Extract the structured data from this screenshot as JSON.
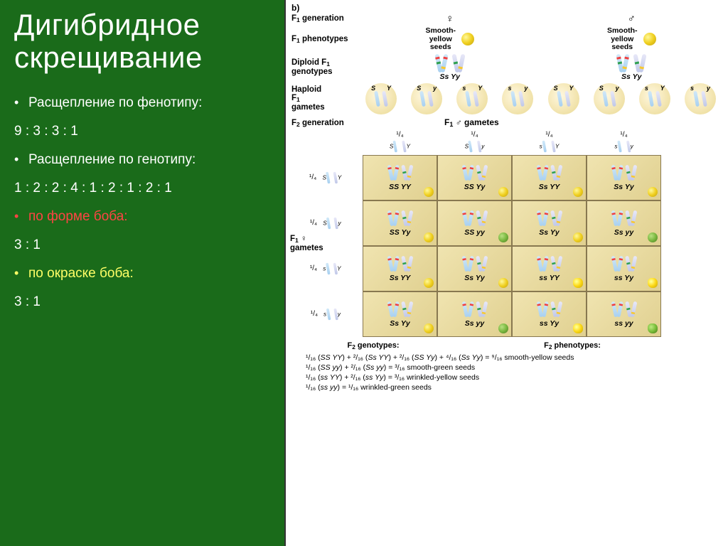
{
  "title": "Дигибридное скрещивание",
  "left_bullets": [
    {
      "text": "Расщепление по фенотипу:",
      "cls": "bullet"
    },
    {
      "text": "9 : 3 : 3 : 1",
      "cls": "no-bullet"
    },
    {
      "text": "Расщепление по генотипу:",
      "cls": "bullet"
    },
    {
      "text": "1 : 2 : 2 : 4 : 1 : 2 : 1 : 2 : 1",
      "cls": "no-bullet"
    },
    {
      "text": "по форме боба:",
      "cls": "bullet red"
    },
    {
      "text": "3 : 1",
      "cls": "no-bullet"
    },
    {
      "text": "по окраске боба:",
      "cls": "bullet yellow"
    },
    {
      "text": "3 : 1",
      "cls": "no-bullet"
    }
  ],
  "section_b": "b)",
  "labels": {
    "f1gen": "F₁ generation",
    "f1pheno": "F₁ phenotypes",
    "diploid": "Diploid F₁ genotypes",
    "haploid": "Haploid F₁ gametes",
    "f2gen": "F₂ generation",
    "male_gametes": "F₁ ♂ gametes",
    "female_gametes": "F₁ ♀\ngametes",
    "smooth_yellow": "Smooth-\nyellow\nseeds",
    "ssyy": "Ss Yy",
    "f2geno_header": "F₂ genotypes:",
    "f2pheno_header": "F₂ phenotypes:"
  },
  "gamete_headers": [
    {
      "frac": "¹/₄",
      "allele1": "S",
      "allele2": "Y"
    },
    {
      "frac": "¹/₄",
      "allele1": "S",
      "allele2": "y"
    },
    {
      "frac": "¹/₄",
      "allele1": "s",
      "allele2": "Y"
    },
    {
      "frac": "¹/₄",
      "allele1": "s",
      "allele2": "y"
    }
  ],
  "punnett_rows": [
    {
      "hdr": {
        "frac": "¹/₄",
        "allele1": "S",
        "allele2": "Y"
      },
      "cells": [
        {
          "geno": "SS YY",
          "seed": "seed-yellow"
        },
        {
          "geno": "SS Yy",
          "seed": "seed-yellow"
        },
        {
          "geno": "Ss YY",
          "seed": "seed-yellow"
        },
        {
          "geno": "Ss Yy",
          "seed": "seed-yellow"
        }
      ]
    },
    {
      "hdr": {
        "frac": "¹/₄",
        "allele1": "S",
        "allele2": "y"
      },
      "cells": [
        {
          "geno": "SS Yy",
          "seed": "seed-yellow"
        },
        {
          "geno": "SS yy",
          "seed": "seed-green"
        },
        {
          "geno": "Ss Yy",
          "seed": "seed-yellow"
        },
        {
          "geno": "Ss yy",
          "seed": "seed-green"
        }
      ]
    },
    {
      "hdr": {
        "frac": "¹/₄",
        "allele1": "s",
        "allele2": "Y"
      },
      "cells": [
        {
          "geno": "Ss YY",
          "seed": "seed-yellow"
        },
        {
          "geno": "Ss Yy",
          "seed": "seed-yellow"
        },
        {
          "geno": "ss YY",
          "seed": "seed-yellow-wrinkled"
        },
        {
          "geno": "ss Yy",
          "seed": "seed-yellow-wrinkled"
        }
      ]
    },
    {
      "hdr": {
        "frac": "¹/₄",
        "allele1": "s",
        "allele2": "y"
      },
      "cells": [
        {
          "geno": "Ss Yy",
          "seed": "seed-yellow"
        },
        {
          "geno": "Ss yy",
          "seed": "seed-green"
        },
        {
          "geno": "ss Yy",
          "seed": "seed-yellow-wrinkled"
        },
        {
          "geno": "ss yy",
          "seed": "seed-green-wrinkled"
        }
      ]
    }
  ],
  "gamete_circles": [
    {
      "l": "S",
      "r": "Y"
    },
    {
      "l": "S",
      "r": "y"
    },
    {
      "l": "s",
      "r": "Y"
    },
    {
      "l": "s",
      "r": "y"
    },
    {
      "l": "S",
      "r": "Y"
    },
    {
      "l": "S",
      "r": "y"
    },
    {
      "l": "s",
      "r": "Y"
    },
    {
      "l": "s",
      "r": "y"
    }
  ],
  "equations": [
    "¹/₁₆ (SS YY) + ²/₁₆ (Ss YY) + ²/₁₆ (SS Yy) + ⁴/₁₆ (Ss Yy) = ⁹/₁₆ smooth-yellow seeds",
    "¹/₁₆ (SS yy) + ²/₁₆ (Ss yy) = ³/₁₆ smooth-green seeds",
    "¹/₁₆ (ss YY) + ²/₁₆ (ss Yy) = ³/₁₆ wrinkled-yellow seeds",
    "¹/₁₆ (ss yy) = ¹/₁₆ wrinkled-green seeds"
  ]
}
